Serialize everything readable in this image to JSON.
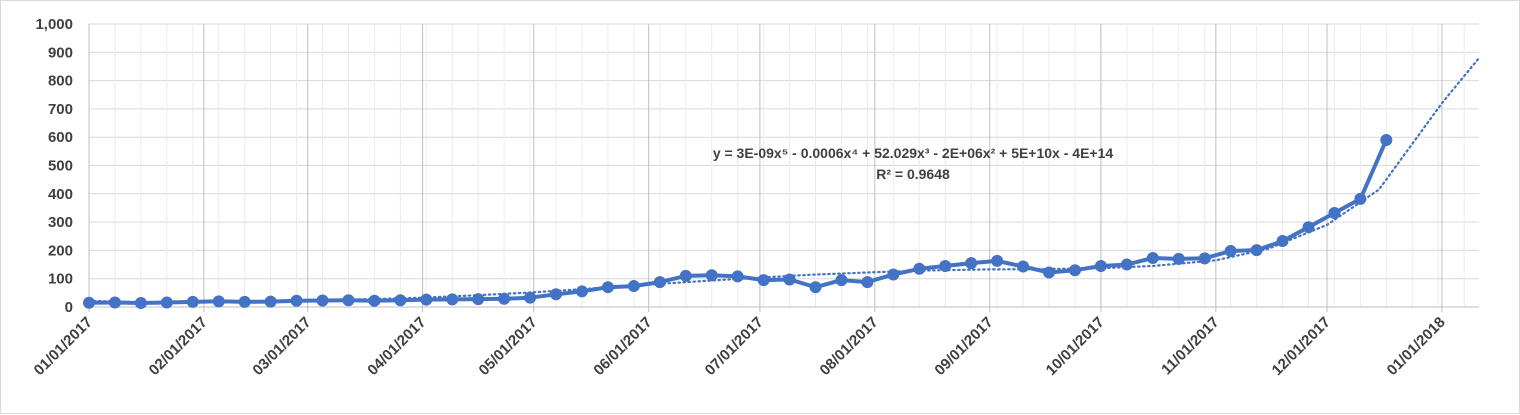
{
  "chart_data": {
    "type": "line",
    "xlim": [
      "2017-01-01",
      "2018-01-11"
    ],
    "ylim": [
      0,
      1000
    ],
    "y_ticks": [
      "0",
      "100",
      "200",
      "300",
      "400",
      "500",
      "600",
      "700",
      "800",
      "900",
      "1,000"
    ],
    "x_ticks": [
      {
        "date": "2017-01-01",
        "label": "01/01/2017"
      },
      {
        "date": "2017-02-01",
        "label": "02/01/2017"
      },
      {
        "date": "2017-03-01",
        "label": "03/01/2017"
      },
      {
        "date": "2017-04-01",
        "label": "04/01/2017"
      },
      {
        "date": "2017-05-01",
        "label": "05/01/2017"
      },
      {
        "date": "2017-06-01",
        "label": "06/01/2017"
      },
      {
        "date": "2017-07-01",
        "label": "07/01/2017"
      },
      {
        "date": "2017-08-01",
        "label": "08/01/2017"
      },
      {
        "date": "2017-09-01",
        "label": "09/01/2017"
      },
      {
        "date": "2017-10-01",
        "label": "10/01/2017"
      },
      {
        "date": "2017-11-01",
        "label": "11/01/2017"
      },
      {
        "date": "2017-12-01",
        "label": "12/01/2017"
      },
      {
        "date": "2018-01-01",
        "label": "01/01/2018"
      }
    ],
    "grid": {
      "horizontal": true,
      "vertical": true
    },
    "series": [
      {
        "color": "#4472c4",
        "points": [
          [
            "2017-01-01",
            15
          ],
          [
            "2017-01-08",
            16
          ],
          [
            "2017-01-15",
            14
          ],
          [
            "2017-01-22",
            16
          ],
          [
            "2017-01-29",
            18
          ],
          [
            "2017-02-05",
            20
          ],
          [
            "2017-02-12",
            18
          ],
          [
            "2017-02-19",
            19
          ],
          [
            "2017-02-26",
            22
          ],
          [
            "2017-03-05",
            23
          ],
          [
            "2017-03-12",
            24
          ],
          [
            "2017-03-19",
            22
          ],
          [
            "2017-03-26",
            24
          ],
          [
            "2017-04-02",
            26
          ],
          [
            "2017-04-09",
            27
          ],
          [
            "2017-04-16",
            28
          ],
          [
            "2017-04-23",
            29
          ],
          [
            "2017-04-30",
            33
          ],
          [
            "2017-05-07",
            45
          ],
          [
            "2017-05-14",
            55
          ],
          [
            "2017-05-21",
            70
          ],
          [
            "2017-05-28",
            74
          ],
          [
            "2017-06-04",
            88
          ],
          [
            "2017-06-11",
            110
          ],
          [
            "2017-06-18",
            112
          ],
          [
            "2017-06-25",
            108
          ],
          [
            "2017-07-02",
            95
          ],
          [
            "2017-07-09",
            97
          ],
          [
            "2017-07-16",
            70
          ],
          [
            "2017-07-23",
            95
          ],
          [
            "2017-07-30",
            88
          ],
          [
            "2017-08-06",
            115
          ],
          [
            "2017-08-13",
            135
          ],
          [
            "2017-08-20",
            145
          ],
          [
            "2017-08-27",
            155
          ],
          [
            "2017-09-03",
            163
          ],
          [
            "2017-09-10",
            143
          ],
          [
            "2017-09-17",
            122
          ],
          [
            "2017-09-24",
            130
          ],
          [
            "2017-10-01",
            145
          ],
          [
            "2017-10-08",
            150
          ],
          [
            "2017-10-15",
            173
          ],
          [
            "2017-10-22",
            170
          ],
          [
            "2017-10-29",
            172
          ],
          [
            "2017-11-05",
            198
          ],
          [
            "2017-11-12",
            201
          ],
          [
            "2017-11-19",
            233
          ],
          [
            "2017-11-26",
            282
          ],
          [
            "2017-12-03",
            332
          ],
          [
            "2017-12-10",
            382
          ],
          [
            "2017-12-17",
            590
          ]
        ]
      }
    ],
    "trendline": {
      "type": "polynomial",
      "order": 5,
      "style": "dotted",
      "color": "#4472c4",
      "equation": "y = 3E-09x⁵ - 0.0006x⁴ + 52.029x³ - 2E+06x² + 5E+10x - 4E+14",
      "r_squared": "R² = 0.9648",
      "points": [
        [
          "2017-01-01",
          22
        ],
        [
          "2017-01-15",
          17
        ],
        [
          "2017-02-01",
          16
        ],
        [
          "2017-02-15",
          18
        ],
        [
          "2017-03-01",
          22
        ],
        [
          "2017-03-15",
          27
        ],
        [
          "2017-04-01",
          33
        ],
        [
          "2017-04-15",
          41
        ],
        [
          "2017-05-01",
          52
        ],
        [
          "2017-05-15",
          64
        ],
        [
          "2017-06-01",
          79
        ],
        [
          "2017-06-15",
          91
        ],
        [
          "2017-07-01",
          104
        ],
        [
          "2017-07-15",
          114
        ],
        [
          "2017-08-01",
          123
        ],
        [
          "2017-08-15",
          129
        ],
        [
          "2017-09-01",
          133
        ],
        [
          "2017-09-15",
          134
        ],
        [
          "2017-10-01",
          137
        ],
        [
          "2017-10-15",
          145
        ],
        [
          "2017-11-01",
          165
        ],
        [
          "2017-11-15",
          205
        ],
        [
          "2017-12-01",
          290
        ],
        [
          "2017-12-15",
          415
        ],
        [
          "2018-01-01",
          720
        ],
        [
          "2018-01-11",
          880
        ]
      ]
    }
  }
}
